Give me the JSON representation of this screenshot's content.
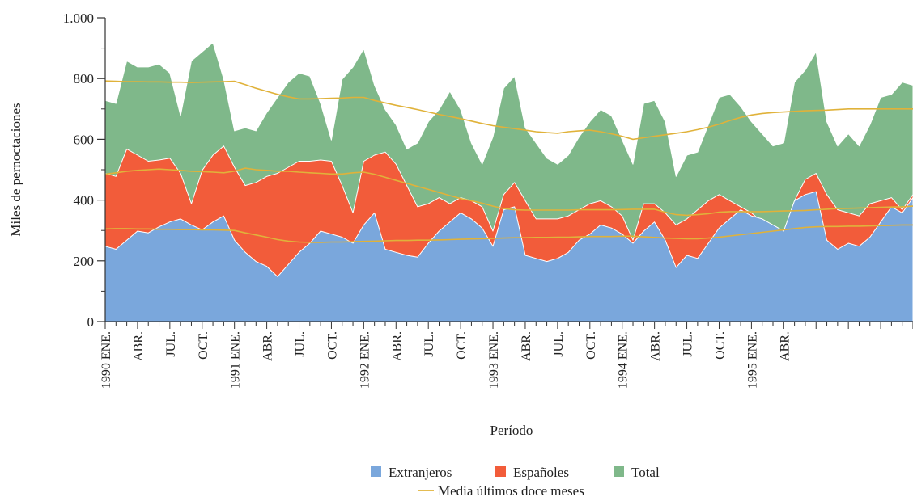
{
  "chart_data": {
    "type": "area",
    "title": "",
    "xlabel": "Período",
    "ylabel": "Miles de pernoctaciones",
    "ylim": [
      0,
      1000
    ],
    "yticks": [
      0,
      200,
      400,
      600,
      800,
      1000
    ],
    "ytick_labels": [
      "0",
      "200",
      "400",
      "600",
      "800",
      "1.000"
    ],
    "x_tick_labels": [
      "1990 ENE.",
      "ABR.",
      "JUL.",
      "OCT.",
      "1991 ENE.",
      "ABR.",
      "JUL.",
      "OCT.",
      "1992 ENE.",
      "ABR.",
      "JUL.",
      "OCT.",
      "1993 ENE.",
      "ABR.",
      "JUL.",
      "OCT.",
      "1994 ENE.",
      "ABR.",
      "JUL.",
      "OCT.",
      "1995 ENE.",
      "ABR."
    ],
    "grid": false,
    "legend_position": "bottom",
    "colors": {
      "extranjeros": "#7aa7dc",
      "espanoles": "#f25c3a",
      "total": "#7fb88a",
      "media": "#e0b23a"
    },
    "series": [
      {
        "name": "Extranjeros",
        "kind": "area",
        "values": [
          248,
          238,
          268,
          298,
          292,
          312,
          328,
          338,
          318,
          302,
          328,
          348,
          268,
          228,
          198,
          182,
          148,
          188,
          228,
          258,
          298,
          288,
          278,
          258,
          318,
          358,
          238,
          228,
          218,
          212,
          258,
          298,
          328,
          358,
          338,
          308,
          248,
          368,
          378,
          218,
          208,
          198,
          208,
          228,
          268,
          288,
          318,
          308,
          288,
          258,
          298,
          328,
          268,
          178,
          218,
          208,
          258,
          308,
          338,
          368,
          348,
          338,
          318,
          298,
          398,
          418,
          428,
          268,
          238,
          258,
          248,
          278,
          328,
          378,
          358,
          408
        ]
      },
      {
        "name": "Españoles",
        "kind": "area",
        "values": [
          488,
          478,
          568,
          548,
          528,
          532,
          538,
          488,
          388,
          498,
          548,
          578,
          508,
          448,
          458,
          478,
          488,
          508,
          528,
          528,
          532,
          528,
          448,
          358,
          528,
          548,
          558,
          518,
          448,
          378,
          388,
          408,
          388,
          408,
          398,
          378,
          298,
          418,
          458,
          398,
          338,
          338,
          338,
          348,
          368,
          388,
          398,
          378,
          348,
          268,
          388,
          388,
          358,
          318,
          338,
          368,
          398,
          418,
          398,
          378,
          358,
          328,
          318,
          298,
          398,
          468,
          488,
          418,
          368,
          358,
          348,
          388,
          398,
          408,
          368,
          418
        ]
      },
      {
        "name": "Total",
        "kind": "area",
        "values": [
          728,
          718,
          858,
          838,
          838,
          848,
          818,
          678,
          858,
          888,
          918,
          798,
          628,
          638,
          628,
          688,
          738,
          788,
          818,
          808,
          718,
          598,
          798,
          838,
          898,
          778,
          698,
          648,
          568,
          588,
          658,
          698,
          758,
          698,
          588,
          518,
          608,
          768,
          808,
          638,
          588,
          538,
          518,
          548,
          608,
          658,
          698,
          678,
          598,
          518,
          718,
          728,
          658,
          478,
          548,
          558,
          648,
          738,
          748,
          708,
          658,
          618,
          578,
          588,
          788,
          828,
          888,
          658,
          578,
          618,
          578,
          648,
          738,
          748,
          788,
          778
        ]
      },
      {
        "name": "Media últimos doce meses",
        "kind": "line",
        "of": "Total",
        "values": [
          792,
          791,
          790,
          790,
          789,
          789,
          788,
          788,
          787,
          788,
          789,
          790,
          791,
          780,
          768,
          758,
          748,
          740,
          733,
          733,
          734,
          735,
          736,
          738,
          738,
          728,
          720,
          712,
          705,
          698,
          690,
          682,
          675,
          668,
          660,
          652,
          645,
          640,
          635,
          630,
          625,
          622,
          620,
          625,
          628,
          630,
          625,
          618,
          610,
          600,
          605,
          610,
          615,
          620,
          625,
          632,
          640,
          650,
          662,
          672,
          680,
          685,
          688,
          690,
          692,
          694,
          695,
          696,
          698,
          700,
          700,
          700,
          700,
          700,
          700,
          700
        ]
      },
      {
        "name": "Media últimos doce meses",
        "kind": "line",
        "of": "Españoles",
        "values": [
          485,
          490,
          495,
          498,
          500,
          502,
          500,
          498,
          495,
          494,
          492,
          490,
          495,
          505,
          500,
          498,
          495,
          495,
          492,
          490,
          488,
          486,
          486,
          490,
          492,
          485,
          475,
          465,
          455,
          445,
          435,
          425,
          415,
          405,
          398,
          390,
          380,
          372,
          368,
          367,
          367,
          367,
          367,
          367,
          368,
          368,
          368,
          368,
          369,
          370,
          370,
          370,
          360,
          352,
          350,
          352,
          355,
          360,
          362,
          362,
          362,
          362,
          363,
          364,
          365,
          366,
          368,
          370,
          372,
          373,
          374,
          375,
          376,
          377,
          378,
          380
        ]
      },
      {
        "name": "Media últimos doce meses",
        "kind": "line",
        "of": "Extranjeros",
        "values": [
          305,
          306,
          306,
          305,
          305,
          304,
          304,
          303,
          303,
          302,
          302,
          301,
          300,
          292,
          285,
          278,
          270,
          265,
          262,
          261,
          261,
          262,
          262,
          263,
          264,
          265,
          266,
          267,
          267,
          268,
          268,
          269,
          270,
          271,
          272,
          273,
          274,
          275,
          276,
          276,
          277,
          277,
          278,
          278,
          279,
          280,
          280,
          280,
          281,
          281,
          279,
          277,
          275,
          274,
          273,
          273,
          275,
          278,
          282,
          286,
          290,
          294,
          298,
          302,
          306,
          310,
          312,
          313,
          313,
          314,
          314,
          315,
          316,
          317,
          318,
          318
        ]
      }
    ],
    "legend": [
      {
        "label": "Extranjeros",
        "swatch": "square"
      },
      {
        "label": "Españoles",
        "swatch": "square"
      },
      {
        "label": "Total",
        "swatch": "square"
      },
      {
        "label": "Media últimos doce meses",
        "swatch": "line"
      }
    ]
  }
}
